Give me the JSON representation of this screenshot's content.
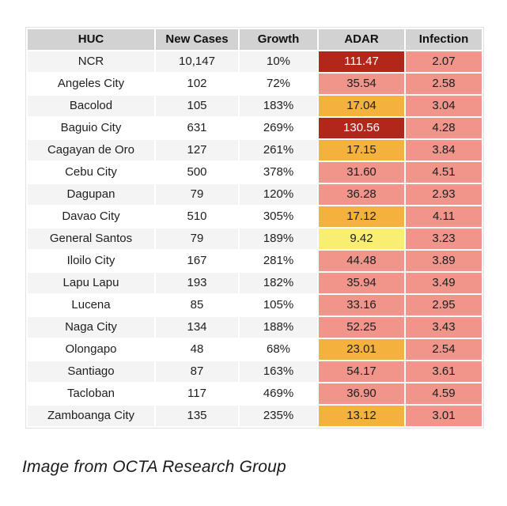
{
  "chart_data": {
    "type": "table",
    "columns": [
      "HUC",
      "New Cases",
      "Growth",
      "ADAR",
      "Infection"
    ],
    "rows": [
      {
        "huc": "NCR",
        "new_cases": "10,147",
        "growth": "10%",
        "adar": "111.47",
        "adar_color": "darkred",
        "infection": "2.07"
      },
      {
        "huc": "Angeles City",
        "new_cases": "102",
        "growth": "72%",
        "adar": "35.54",
        "adar_color": "pink",
        "infection": "2.58"
      },
      {
        "huc": "Bacolod",
        "new_cases": "105",
        "growth": "183%",
        "adar": "17.04",
        "adar_color": "orange",
        "infection": "3.04"
      },
      {
        "huc": "Baguio City",
        "new_cases": "631",
        "growth": "269%",
        "adar": "130.56",
        "adar_color": "darkred",
        "infection": "4.28"
      },
      {
        "huc": "Cagayan de Oro",
        "new_cases": "127",
        "growth": "261%",
        "adar": "17.15",
        "adar_color": "orange",
        "infection": "3.84"
      },
      {
        "huc": "Cebu City",
        "new_cases": "500",
        "growth": "378%",
        "adar": "31.60",
        "adar_color": "pink",
        "infection": "4.51"
      },
      {
        "huc": "Dagupan",
        "new_cases": "79",
        "growth": "120%",
        "adar": "36.28",
        "adar_color": "pink",
        "infection": "2.93"
      },
      {
        "huc": "Davao City",
        "new_cases": "510",
        "growth": "305%",
        "adar": "17.12",
        "adar_color": "orange",
        "infection": "4.11"
      },
      {
        "huc": "General Santos",
        "new_cases": "79",
        "growth": "189%",
        "adar": "9.42",
        "adar_color": "yellow",
        "infection": "3.23"
      },
      {
        "huc": "Iloilo City",
        "new_cases": "167",
        "growth": "281%",
        "adar": "44.48",
        "adar_color": "pink",
        "infection": "3.89"
      },
      {
        "huc": "Lapu Lapu",
        "new_cases": "193",
        "growth": "182%",
        "adar": "35.94",
        "adar_color": "pink",
        "infection": "3.49"
      },
      {
        "huc": "Lucena",
        "new_cases": "85",
        "growth": "105%",
        "adar": "33.16",
        "adar_color": "pink",
        "infection": "2.95"
      },
      {
        "huc": "Naga City",
        "new_cases": "134",
        "growth": "188%",
        "adar": "52.25",
        "adar_color": "pink",
        "infection": "3.43"
      },
      {
        "huc": "Olongapo",
        "new_cases": "48",
        "growth": "68%",
        "adar": "23.01",
        "adar_color": "orange",
        "infection": "2.54"
      },
      {
        "huc": "Santiago",
        "new_cases": "87",
        "growth": "163%",
        "adar": "54.17",
        "adar_color": "pink",
        "infection": "3.61"
      },
      {
        "huc": "Tacloban",
        "new_cases": "117",
        "growth": "469%",
        "adar": "36.90",
        "adar_color": "pink",
        "infection": "4.59"
      },
      {
        "huc": "Zamboanga City",
        "new_cases": "135",
        "growth": "235%",
        "adar": "13.12",
        "adar_color": "orange",
        "infection": "3.01"
      }
    ],
    "colors": {
      "header_bg": "#d2d2d2",
      "row_alt_bg": "#f4f4f4",
      "adar_darkred": "#b3261a",
      "adar_pink": "#f1948a",
      "adar_orange": "#f4b13e",
      "adar_yellow": "#f8ee71",
      "infection_bg": "#f1948a",
      "darkred_text": "#ffffff"
    },
    "legend_position": "none",
    "grid": false
  },
  "caption": {
    "text": "Image from OCTA Research Group"
  }
}
